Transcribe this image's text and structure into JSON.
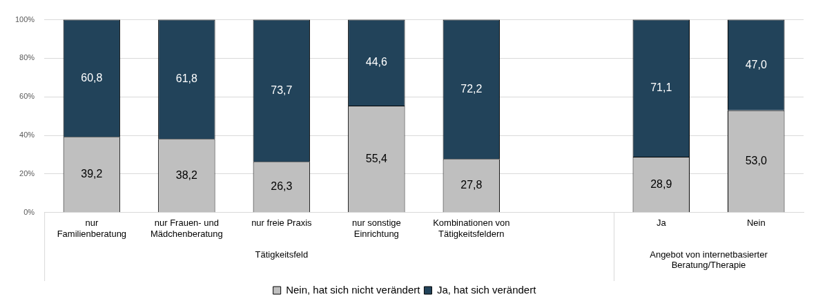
{
  "chart_data": {
    "type": "bar",
    "stacked": true,
    "categories": [
      "nur Familienberatung",
      "nur Frauen- und Mädchenberatung",
      "nur freie Praxis",
      "nur sonstige Einrichtung",
      "Kombinationen von Tätigkeitsfeldern",
      null,
      "Ja",
      "Nein"
    ],
    "series": [
      {
        "name": "Nein, hat sich nicht verändert",
        "color": "#bfbfbf",
        "values": [
          39.2,
          38.2,
          26.3,
          55.4,
          27.8,
          null,
          28.9,
          53.0
        ],
        "value_labels": [
          "39,2",
          "38,2",
          "26,3",
          "55,4",
          "27,8",
          null,
          "28,9",
          "53,0"
        ]
      },
      {
        "name": "Ja, hat sich verändert",
        "color": "#22435a",
        "values": [
          60.8,
          61.8,
          73.7,
          44.6,
          72.2,
          null,
          71.1,
          47.0
        ],
        "value_labels": [
          "60,8",
          "61,8",
          "73,7",
          "44,6",
          "72,2",
          null,
          "71,1",
          "47,0"
        ]
      }
    ],
    "annotations": [
      "Tätigkeitsfeld",
      "Angebot von internetbasierter Beratung/Therapie"
    ],
    "ylim": [
      0,
      100
    ],
    "yticks": [
      {
        "value": 0,
        "label": "0%"
      },
      {
        "value": 20,
        "label": "20%"
      },
      {
        "value": 40,
        "label": "40%"
      },
      {
        "value": 60,
        "label": "60%"
      },
      {
        "value": 80,
        "label": "80%"
      },
      {
        "value": 100,
        "label": "100%"
      }
    ],
    "grid": "y",
    "legend": "bottom"
  }
}
